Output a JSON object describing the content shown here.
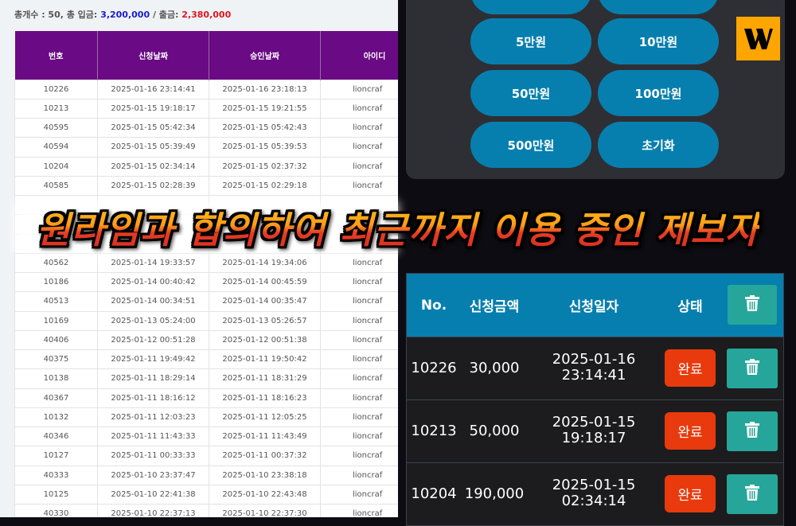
{
  "summary": {
    "label": "총개수 : 50, 총 입금:",
    "deposit": "3,200,000",
    "sep": "/ 출금:",
    "withdraw": "2,380,000"
  },
  "left_table": {
    "headers": [
      "번호",
      "신청날짜",
      "승인날짜",
      "아이디"
    ],
    "rows": [
      [
        "10226",
        "2025-01-16 23:14:41",
        "2025-01-16 23:18:13",
        "lioncraf"
      ],
      [
        "10213",
        "2025-01-15 19:18:17",
        "2025-01-15 19:21:55",
        "lioncraf"
      ],
      [
        "40595",
        "2025-01-15 05:42:34",
        "2025-01-15 05:42:43",
        "lioncraf"
      ],
      [
        "40594",
        "2025-01-15 05:39:49",
        "2025-01-15 05:39:53",
        "lioncraf"
      ],
      [
        "10204",
        "2025-01-15 02:34:14",
        "2025-01-15 02:37:32",
        "lioncraf"
      ],
      [
        "40585",
        "2025-01-15 02:28:39",
        "2025-01-15 02:29:18",
        "lioncraf"
      ],
      [
        "",
        "",
        "",
        ""
      ],
      [
        "",
        "",
        "",
        ""
      ],
      [
        "",
        "",
        "",
        ""
      ],
      [
        "40562",
        "2025-01-14 19:33:57",
        "2025-01-14 19:34:06",
        "lioncraf"
      ],
      [
        "10186",
        "2025-01-14 00:40:42",
        "2025-01-14 00:45:59",
        "lioncraf"
      ],
      [
        "40513",
        "2025-01-14 00:34:51",
        "2025-01-14 00:35:47",
        "lioncraf"
      ],
      [
        "10169",
        "2025-01-13 05:24:00",
        "2025-01-13 05:26:57",
        "lioncraf"
      ],
      [
        "40406",
        "2025-01-12 00:51:28",
        "2025-01-12 00:51:38",
        "lioncraf"
      ],
      [
        "40375",
        "2025-01-11 19:49:42",
        "2025-01-11 19:50:42",
        "lioncraf"
      ],
      [
        "10138",
        "2025-01-11 18:29:14",
        "2025-01-11 18:31:29",
        "lioncraf"
      ],
      [
        "40367",
        "2025-01-11 18:16:12",
        "2025-01-11 18:16:23",
        "lioncraf"
      ],
      [
        "10132",
        "2025-01-11 12:03:23",
        "2025-01-11 12:05:25",
        "lioncraf"
      ],
      [
        "40346",
        "2025-01-11 11:43:33",
        "2025-01-11 11:43:49",
        "lioncraf"
      ],
      [
        "10127",
        "2025-01-11 00:33:33",
        "2025-01-11 00:37:32",
        "lioncraf"
      ],
      [
        "40333",
        "2025-01-10 23:37:47",
        "2025-01-10 23:38:18",
        "lioncraf"
      ],
      [
        "10125",
        "2025-01-10 22:41:38",
        "2025-01-10 22:43:48",
        "lioncraf"
      ],
      [
        "40330",
        "2025-01-10 22:37:13",
        "2025-01-10 22:37:30",
        "lioncraf"
      ]
    ]
  },
  "amount_buttons": [
    "5만원",
    "10만원",
    "50만원",
    "100만원",
    "500만원",
    "초기화"
  ],
  "logo": {
    "letter": "W",
    "color": "#ffa500"
  },
  "right_table": {
    "headers": {
      "no": "No.",
      "amount": "신청금액",
      "date": "신청일자",
      "status": "상태"
    },
    "rows": [
      {
        "no": "10226",
        "amount": "30,000",
        "date": "2025-01-16",
        "time": "23:14:41",
        "status": "완료"
      },
      {
        "no": "10213",
        "amount": "50,000",
        "date": "2025-01-15",
        "time": "19:18:17",
        "status": "완료"
      },
      {
        "no": "10204",
        "amount": "190,000",
        "date": "2025-01-15",
        "time": "02:34:14",
        "status": "완료"
      }
    ]
  },
  "banner": {
    "text": "원라임과 합의하여 최근까지 이용 중인 제보자"
  },
  "colors": {
    "purple_header": "#6a0a84",
    "blue": "#067fae",
    "teal": "#26a69a",
    "red": "#e83a0c",
    "deposit": "#1a1acc",
    "withdraw": "#e0141e"
  }
}
